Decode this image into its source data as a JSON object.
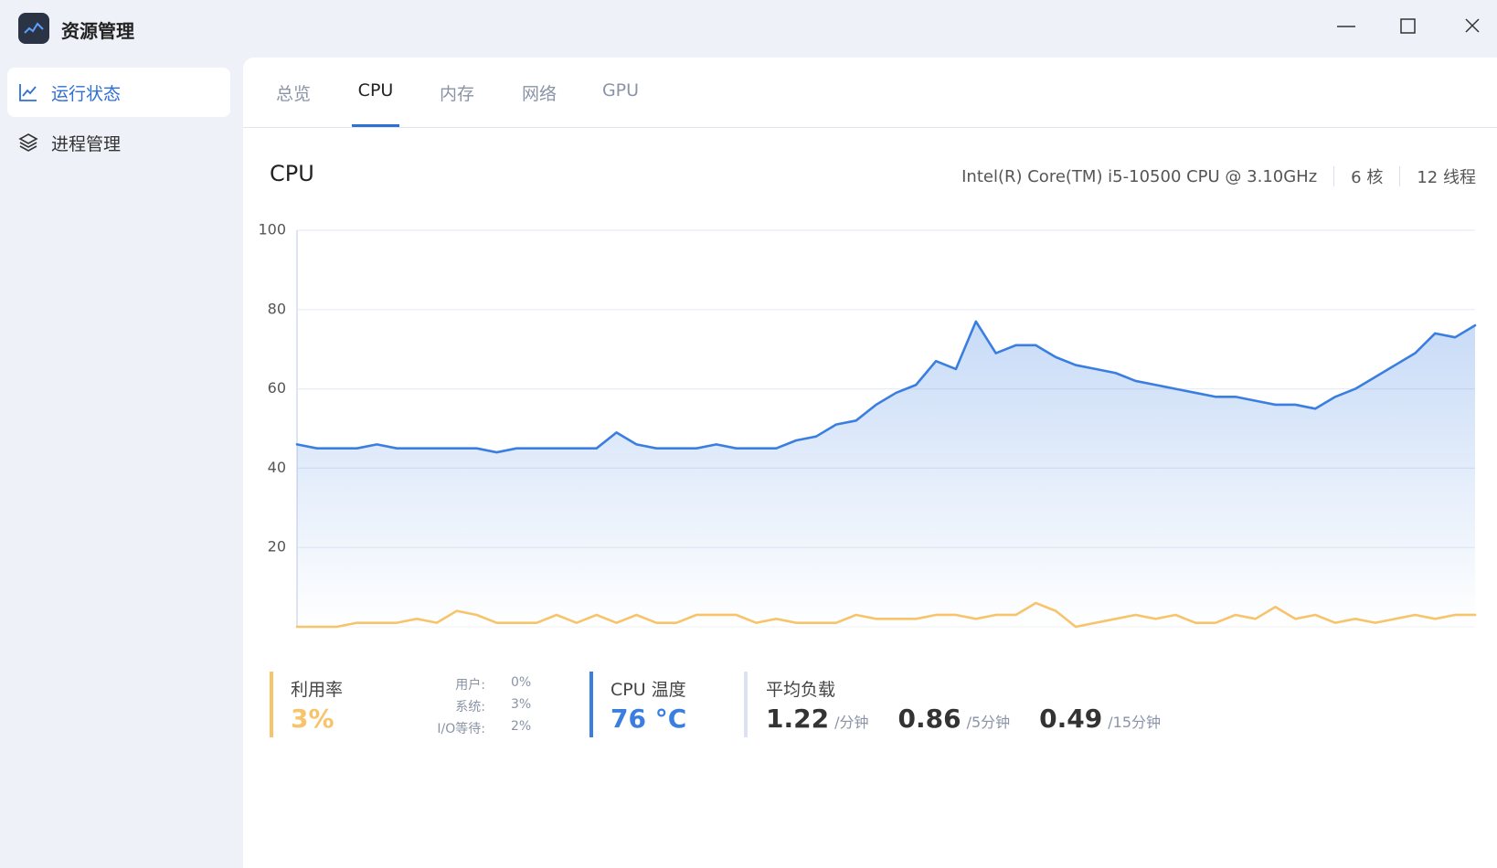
{
  "window": {
    "title": "资源管理"
  },
  "sidebar": {
    "items": [
      "运行状态",
      "进程管理"
    ],
    "selected": 0
  },
  "tabs": {
    "items": [
      "总览",
      "CPU",
      "内存",
      "网络",
      "GPU"
    ],
    "selected": 1
  },
  "header": {
    "title": "CPU",
    "model": "Intel(R) Core(TM) i5-10500 CPU @ 3.10GHz",
    "cores": "6 核",
    "threads": "12 线程"
  },
  "chart_data": {
    "type": "line",
    "ylim": [
      0,
      100
    ],
    "yticks": [
      20,
      40,
      60,
      80,
      100
    ],
    "grid": true,
    "series": [
      {
        "color": "#3a7ee0",
        "area": true,
        "values": [
          46,
          45,
          45,
          45,
          46,
          45,
          45,
          45,
          45,
          45,
          44,
          45,
          45,
          45,
          45,
          45,
          49,
          46,
          45,
          45,
          45,
          46,
          45,
          45,
          45,
          47,
          48,
          51,
          52,
          56,
          59,
          61,
          67,
          65,
          77,
          69,
          71,
          71,
          68,
          66,
          65,
          64,
          62,
          61,
          60,
          59,
          58,
          58,
          57,
          56,
          56,
          55,
          58,
          60,
          63,
          66,
          69,
          74,
          73,
          76
        ]
      },
      {
        "color": "#f7c46c",
        "area": false,
        "values": [
          0,
          0,
          0,
          1,
          1,
          1,
          2,
          1,
          4,
          3,
          1,
          1,
          1,
          3,
          1,
          3,
          1,
          3,
          1,
          1,
          3,
          3,
          3,
          1,
          2,
          1,
          1,
          1,
          3,
          2,
          2,
          2,
          3,
          3,
          2,
          3,
          3,
          6,
          4,
          0,
          1,
          2,
          3,
          2,
          3,
          1,
          1,
          3,
          2,
          5,
          2,
          3,
          1,
          2,
          1,
          2,
          3,
          2,
          3,
          3
        ]
      }
    ]
  },
  "stats": {
    "usage": {
      "label": "利用率",
      "value": "3%",
      "breakdown": [
        [
          "用户:",
          "0%"
        ],
        [
          "系统:",
          "3%"
        ],
        [
          "I/O等待:",
          "2%"
        ]
      ]
    },
    "temperature": {
      "label": "CPU 温度",
      "value": "76 °C"
    },
    "load": {
      "label": "平均负载",
      "items": [
        [
          "1.22",
          "/分钟"
        ],
        [
          "0.86",
          "/5分钟"
        ],
        [
          "0.49",
          "/15分钟"
        ]
      ]
    }
  }
}
